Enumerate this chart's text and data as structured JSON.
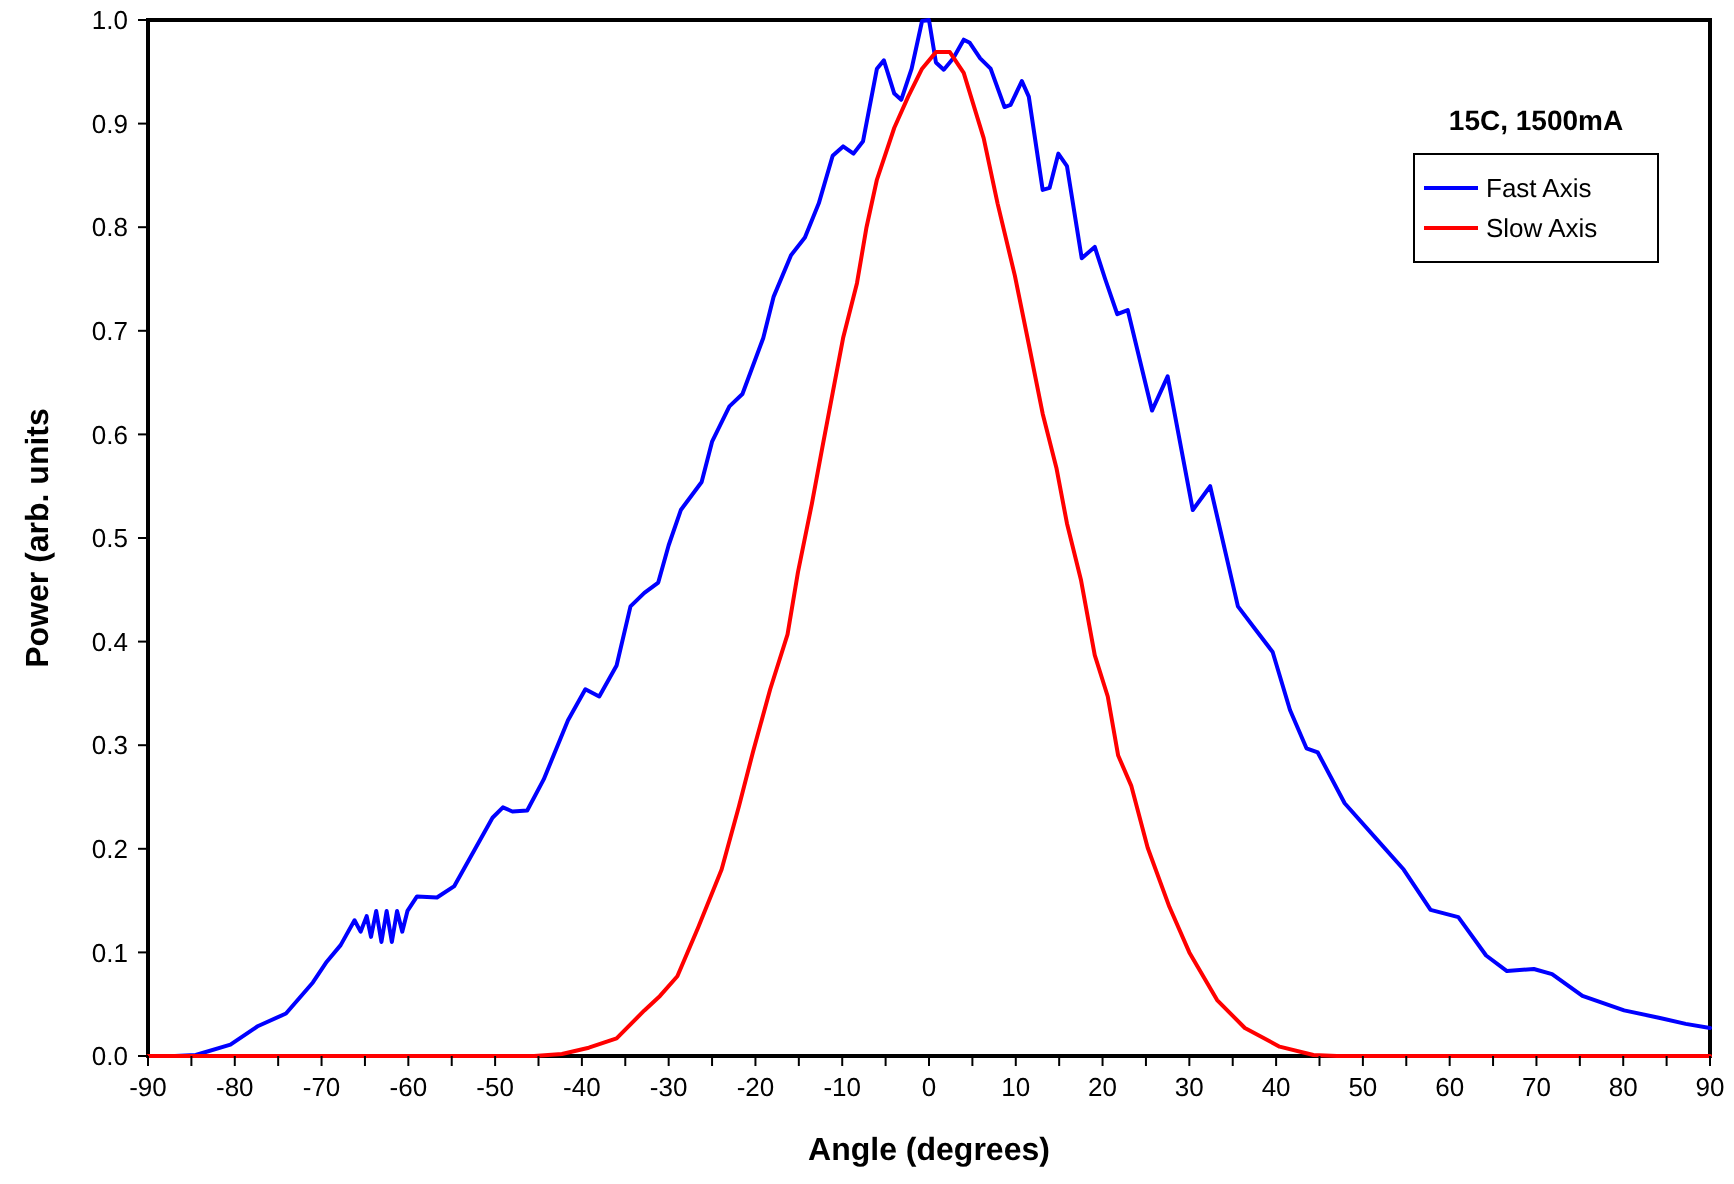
{
  "chart_data": {
    "type": "line",
    "xlabel": "Angle (degrees)",
    "ylabel": "Power (arb. units",
    "annotations": [
      "15C, 1500mA"
    ],
    "xlim": [
      -90,
      90
    ],
    "ylim": [
      0,
      1
    ],
    "xticks": [
      -90,
      {
        "value": -85,
        "label": null
      },
      -80,
      {
        "value": -75,
        "label": null
      },
      -70,
      {
        "value": -65,
        "label": null
      },
      -60,
      {
        "value": -55,
        "label": null
      },
      -50,
      {
        "value": -45,
        "label": null
      },
      -40,
      {
        "value": -35,
        "label": null
      },
      -30,
      {
        "value": -25,
        "label": null
      },
      -20,
      {
        "value": -15,
        "label": null
      },
      -10,
      {
        "value": -5,
        "label": null
      },
      0,
      {
        "value": 5,
        "label": null
      },
      10,
      {
        "value": 15,
        "label": null
      },
      20,
      {
        "value": 25,
        "label": null
      },
      30,
      {
        "value": 35,
        "label": null
      },
      40,
      {
        "value": 45,
        "label": null
      },
      50,
      {
        "value": 55,
        "label": null
      },
      60,
      {
        "value": 65,
        "label": null
      },
      70,
      {
        "value": 75,
        "label": null
      },
      80,
      {
        "value": 85,
        "label": null
      },
      90
    ],
    "yticks": [
      {
        "value": 0,
        "label": "0.0"
      },
      {
        "value": 0.1,
        "label": "0.1"
      },
      {
        "value": 0.2,
        "label": "0.2"
      },
      {
        "value": 0.3,
        "label": "0.3"
      },
      {
        "value": 0.4,
        "label": "0.4"
      },
      {
        "value": 0.5,
        "label": "0.5"
      },
      {
        "value": 0.6,
        "label": "0.6"
      },
      {
        "value": 0.7,
        "label": "0.7"
      },
      {
        "value": 0.8,
        "label": "0.8"
      },
      {
        "value": 0.9,
        "label": "0.9"
      },
      {
        "value": 1,
        "label": "1.0"
      }
    ],
    "grid": false,
    "legend": "top right",
    "marker": "none",
    "line_style": "solid",
    "series": [
      {
        "name": "Fast Axis",
        "color": "#0000ff",
        "x": [
          -86.9,
          -84.5,
          -80.5,
          -77.3,
          -74.1,
          -71.0,
          -69.4,
          -67.8,
          -66.2,
          -65.5,
          -64.8,
          -64.3,
          -63.7,
          -63.1,
          -62.5,
          -61.9,
          -61.3,
          -60.7,
          -60.1,
          -59.0,
          -56.7,
          -54.7,
          -52.7,
          -50.3,
          -49.1,
          -48.0,
          -46.3,
          -44.4,
          -41.6,
          -39.6,
          -38.0,
          -36.0,
          -34.4,
          -32.8,
          -31.2,
          -30.0,
          -28.6,
          -26.2,
          -25.0,
          -23.0,
          -21.5,
          -19.1,
          -17.9,
          -15.9,
          -14.3,
          -12.7,
          -11.1,
          -9.9,
          -8.7,
          -7.6,
          -6.0,
          -5.2,
          -4.0,
          -3.2,
          -2.0,
          -0.8,
          0,
          0.8,
          1.7,
          2.8,
          4.0,
          4.7,
          5.9,
          7.1,
          8.7,
          9.4,
          10.7,
          11.5,
          13.1,
          13.9,
          14.9,
          15.9,
          17.6,
          19.1,
          20.3,
          21.7,
          22.9,
          25.7,
          27.5,
          30.4,
          32.4,
          35.6,
          37.6,
          39.6,
          41.6,
          43.5,
          44.8,
          47.9,
          51.5,
          54.7,
          57.8,
          61.0,
          64.2,
          66.6,
          69.7,
          71.8,
          75.3,
          80.1,
          84.1,
          87.2,
          90
        ],
        "values": [
          0.0,
          0.001,
          0.011,
          0.029,
          0.041,
          0.071,
          0.091,
          0.107,
          0.131,
          0.12,
          0.135,
          0.115,
          0.14,
          0.11,
          0.14,
          0.11,
          0.14,
          0.12,
          0.14,
          0.154,
          0.153,
          0.164,
          0.194,
          0.23,
          0.24,
          0.236,
          0.237,
          0.267,
          0.324,
          0.354,
          0.347,
          0.377,
          0.434,
          0.447,
          0.457,
          0.493,
          0.527,
          0.554,
          0.593,
          0.627,
          0.639,
          0.693,
          0.733,
          0.773,
          0.79,
          0.823,
          0.869,
          0.878,
          0.871,
          0.883,
          0.953,
          0.961,
          0.929,
          0.923,
          0.953,
          0.999,
          1.0,
          0.959,
          0.952,
          0.963,
          0.981,
          0.978,
          0.963,
          0.953,
          0.916,
          0.918,
          0.941,
          0.926,
          0.836,
          0.838,
          0.871,
          0.859,
          0.77,
          0.781,
          0.75,
          0.716,
          0.72,
          0.623,
          0.656,
          0.527,
          0.55,
          0.434,
          0.412,
          0.39,
          0.334,
          0.297,
          0.293,
          0.244,
          0.21,
          0.18,
          0.141,
          0.134,
          0.097,
          0.082,
          0.084,
          0.079,
          0.058,
          0.044,
          0.037,
          0.031,
          0.027
        ]
      },
      {
        "name": "Slow Axis",
        "color": "#ff0000",
        "x": [
          -90,
          -45.5,
          -42.3,
          -39.2,
          -36.0,
          -32.8,
          -31.0,
          -29.0,
          -26.6,
          -23.9,
          -21.9,
          -20.3,
          -18.3,
          -16.3,
          -15.1,
          -13.5,
          -12.3,
          -11.1,
          -9.9,
          -8.3,
          -7.2,
          -6.0,
          -4.0,
          -2.4,
          -0.8,
          0.8,
          2.4,
          4.0,
          6.3,
          7.9,
          9.9,
          11.5,
          13.1,
          14.7,
          15.9,
          17.5,
          19.1,
          20.6,
          21.8,
          23.3,
          25.2,
          27.7,
          30.0,
          33.2,
          36.4,
          40.4,
          44.3,
          47.0,
          90
        ],
        "values": [
          0,
          0,
          0.002,
          0.008,
          0.017,
          0.044,
          0.058,
          0.077,
          0.124,
          0.18,
          0.241,
          0.293,
          0.354,
          0.407,
          0.467,
          0.533,
          0.587,
          0.64,
          0.693,
          0.746,
          0.8,
          0.846,
          0.896,
          0.926,
          0.953,
          0.969,
          0.969,
          0.949,
          0.886,
          0.823,
          0.753,
          0.687,
          0.62,
          0.567,
          0.514,
          0.46,
          0.387,
          0.347,
          0.29,
          0.261,
          0.201,
          0.144,
          0.1,
          0.054,
          0.027,
          0.009,
          0.001,
          0,
          0
        ]
      }
    ]
  }
}
